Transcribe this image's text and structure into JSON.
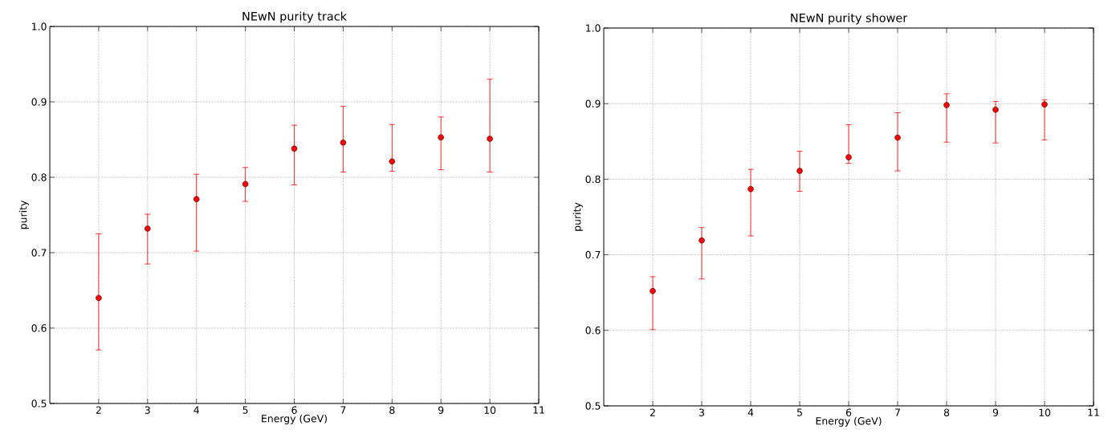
{
  "chart_data": [
    {
      "type": "scatter",
      "title": "NEwN purity track",
      "xlabel": "Energy (GeV)",
      "ylabel": "purity",
      "x": [
        2,
        3,
        4,
        5,
        6,
        7,
        8,
        9,
        10
      ],
      "series": [
        {
          "color": "#ff0000",
          "values": [
            0.64,
            0.732,
            0.771,
            0.791,
            0.838,
            0.846,
            0.821,
            0.853,
            0.851
          ],
          "errors": [
            [
              0.571,
              0.725
            ],
            [
              0.685,
              0.751
            ],
            [
              0.702,
              0.804
            ],
            [
              0.768,
              0.813
            ],
            [
              0.79,
              0.869
            ],
            [
              0.807,
              0.894
            ],
            [
              0.808,
              0.87
            ],
            [
              0.81,
              0.88
            ],
            [
              0.807,
              0.93
            ]
          ]
        }
      ],
      "xlim": [
        1,
        11
      ],
      "xticks": [
        2,
        3,
        4,
        5,
        6,
        7,
        8,
        9,
        10,
        11
      ],
      "ylim": [
        0.5,
        1.0
      ],
      "yticks": [
        0.5,
        0.6,
        0.7,
        0.8,
        0.9,
        {
          "value": 1.0,
          "label": "1.0"
        }
      ],
      "grid": true,
      "marker": "circle"
    },
    {
      "type": "scatter",
      "title": "NEwN purity shower",
      "xlabel": "Energy (GeV)",
      "ylabel": "purity",
      "x": [
        2,
        3,
        4,
        5,
        6,
        7,
        8,
        9,
        10
      ],
      "series": [
        {
          "color": "#ff0000",
          "values": [
            0.652,
            0.719,
            0.787,
            0.811,
            0.829,
            0.855,
            0.898,
            0.892,
            0.899
          ],
          "errors": [
            [
              0.601,
              0.671
            ],
            [
              0.668,
              0.736
            ],
            [
              0.725,
              0.813
            ],
            [
              0.784,
              0.837
            ],
            [
              0.821,
              0.872
            ],
            [
              0.811,
              0.888
            ],
            [
              0.849,
              0.913
            ],
            [
              0.848,
              0.903
            ],
            [
              0.852,
              0.905
            ]
          ]
        }
      ],
      "xlim": [
        1,
        11
      ],
      "xticks": [
        2,
        3,
        4,
        5,
        6,
        7,
        8,
        9,
        10,
        11
      ],
      "ylim": [
        0.5,
        1.0
      ],
      "yticks": [
        0.5,
        0.6,
        0.7,
        0.8,
        0.9,
        {
          "value": 1.0,
          "label": "1.0"
        }
      ],
      "grid": true,
      "marker": "circle"
    }
  ]
}
